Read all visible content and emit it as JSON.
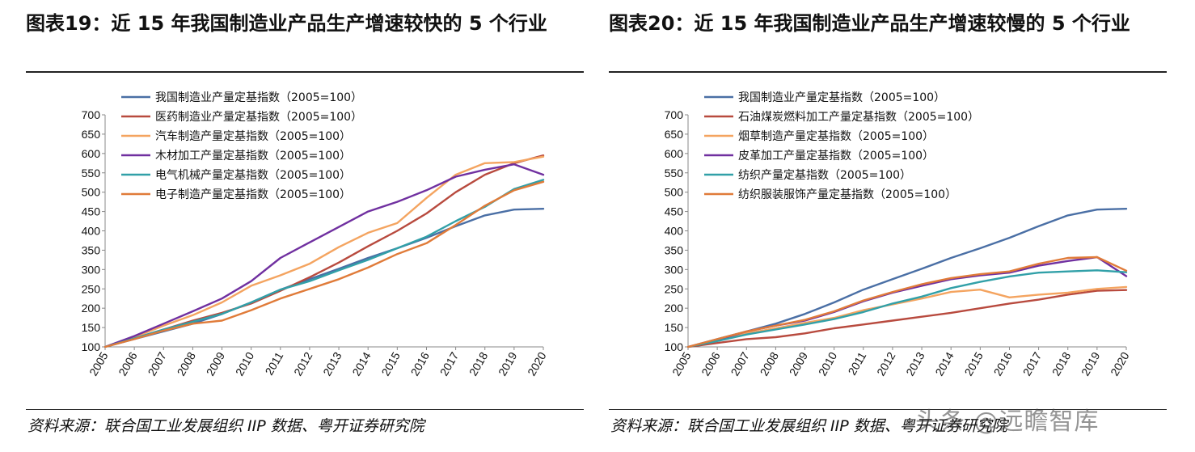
{
  "panels": [
    {
      "title": "图表19：近 15 年我国制造业产品生产增速较快的 5 个行业",
      "source": "资料来源：联合国工业发展组织 IIP 数据、粤开证券研究院"
    },
    {
      "title": "图表20：近 15 年我国制造业产品生产增速较慢的 5 个行业",
      "source": "资料来源：联合国工业发展组织 IIP 数据、粤开证券研究院"
    }
  ],
  "watermark": "头条 @远瞻智库",
  "chart_data": [
    {
      "type": "line",
      "title": "近15年我国制造业产品生产增速较快的5个行业",
      "xlabel": "",
      "ylabel": "",
      "ylim": [
        100,
        700
      ],
      "yticks": [
        100,
        150,
        200,
        250,
        300,
        350,
        400,
        450,
        500,
        550,
        600,
        650,
        700
      ],
      "x": [
        "2005",
        "2006",
        "2007",
        "2008",
        "2009",
        "2010",
        "2011",
        "2012",
        "2013",
        "2014",
        "2015",
        "2016",
        "2017",
        "2018",
        "2019",
        "2020"
      ],
      "legend_position": "top-left",
      "series": [
        {
          "name": "我国制造业产量定基指数（2005=100）",
          "color": "#4a6fa5",
          "values": [
            100,
            120,
            140,
            160,
            185,
            215,
            248,
            275,
            302,
            330,
            355,
            382,
            412,
            440,
            455,
            457
          ]
        },
        {
          "name": "医药制造业产量定基指数（2005=100）",
          "color": "#b84a3e",
          "values": [
            100,
            122,
            145,
            168,
            188,
            212,
            245,
            280,
            318,
            360,
            400,
            445,
            500,
            545,
            575,
            595
          ]
        },
        {
          "name": "汽车制造产量定基指数（2005=100）",
          "color": "#f4a460",
          "values": [
            100,
            125,
            155,
            182,
            215,
            258,
            285,
            315,
            358,
            395,
            420,
            485,
            545,
            575,
            578,
            592
          ]
        },
        {
          "name": "木材加工产量定基指数（2005=100）",
          "color": "#7030a0",
          "values": [
            100,
            128,
            160,
            192,
            225,
            270,
            330,
            370,
            410,
            450,
            475,
            505,
            540,
            558,
            572,
            545
          ]
        },
        {
          "name": "电气机械产量定基指数（2005=100）",
          "color": "#31a0a8",
          "values": [
            100,
            122,
            145,
            165,
            185,
            215,
            248,
            270,
            298,
            325,
            355,
            385,
            425,
            462,
            508,
            532
          ]
        },
        {
          "name": "电子制造产量定基指数（2005=100）",
          "color": "#e07b39",
          "values": [
            100,
            120,
            142,
            160,
            168,
            195,
            225,
            250,
            275,
            305,
            340,
            368,
            415,
            465,
            505,
            527
          ]
        }
      ]
    },
    {
      "type": "line",
      "title": "近15年我国制造业产品生产增速较慢的5个行业",
      "xlabel": "",
      "ylabel": "",
      "ylim": [
        100,
        700
      ],
      "yticks": [
        100,
        150,
        200,
        250,
        300,
        350,
        400,
        450,
        500,
        550,
        600,
        650,
        700
      ],
      "x": [
        "2005",
        "2006",
        "2007",
        "2008",
        "2009",
        "2010",
        "2011",
        "2012",
        "2013",
        "2014",
        "2015",
        "2016",
        "2017",
        "2018",
        "2019",
        "2020"
      ],
      "legend_position": "top-left",
      "series": [
        {
          "name": "我国制造业产量定基指数（2005=100）",
          "color": "#4a6fa5",
          "values": [
            100,
            120,
            140,
            160,
            185,
            215,
            248,
            275,
            302,
            330,
            355,
            382,
            412,
            440,
            455,
            457
          ]
        },
        {
          "name": "石油煤炭燃料加工产量定基指数（2005=100）",
          "color": "#b84a3e",
          "values": [
            100,
            110,
            120,
            125,
            135,
            148,
            158,
            168,
            178,
            188,
            200,
            212,
            222,
            235,
            245,
            247
          ]
        },
        {
          "name": "烟草制造产量定基指数（2005=100）",
          "color": "#f4a460",
          "values": [
            100,
            118,
            135,
            148,
            162,
            175,
            195,
            210,
            225,
            242,
            248,
            228,
            235,
            240,
            250,
            255
          ]
        },
        {
          "name": "皮革加工产量定基指数（2005=100）",
          "color": "#7030a0",
          "values": [
            100,
            118,
            140,
            155,
            168,
            190,
            218,
            240,
            258,
            275,
            285,
            292,
            310,
            322,
            332,
            283
          ]
        },
        {
          "name": "纺织产量定基指数（2005=100）",
          "color": "#31a0a8",
          "values": [
            100,
            115,
            132,
            145,
            158,
            172,
            190,
            212,
            230,
            252,
            268,
            282,
            292,
            295,
            298,
            293
          ]
        },
        {
          "name": "纺织服装服饰产量定基指数（2005=100）",
          "color": "#e07b39",
          "values": [
            100,
            120,
            140,
            155,
            170,
            192,
            220,
            242,
            262,
            278,
            288,
            295,
            315,
            330,
            332,
            297
          ]
        }
      ]
    }
  ]
}
